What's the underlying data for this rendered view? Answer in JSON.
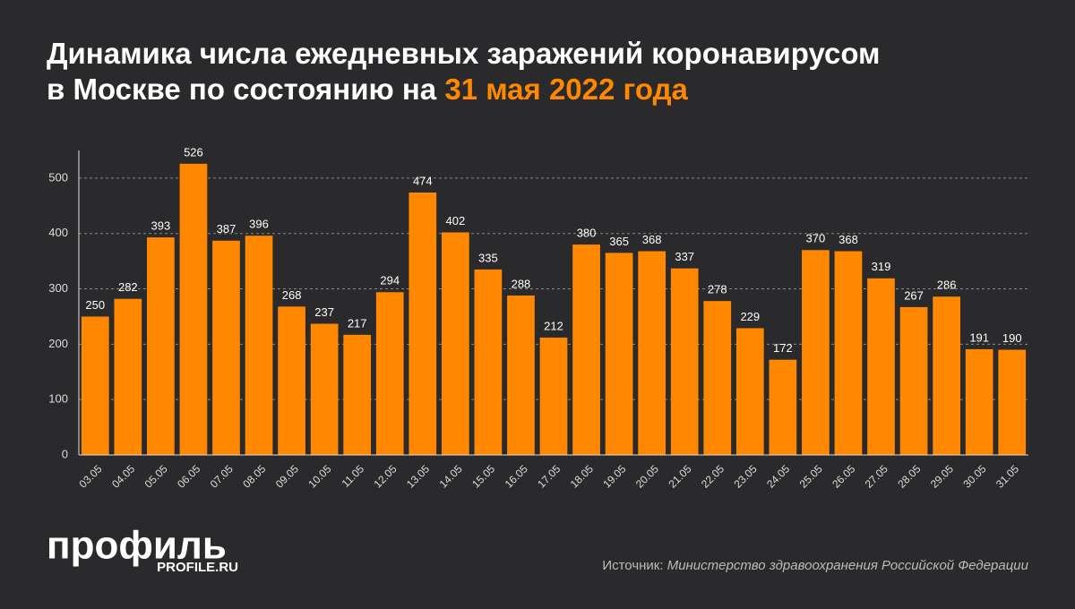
{
  "chart_data": {
    "type": "bar",
    "title": "Динамика числа ежедневных заражений коронавирусом в Москве по состоянию на ",
    "title_date": "31 мая 2022 года",
    "categories": [
      "03.05",
      "04.05",
      "05.05",
      "06.05",
      "07.05",
      "08.05",
      "09.05",
      "10.05",
      "11.05",
      "12.05",
      "13.05",
      "14.05",
      "15.05",
      "16.05",
      "17.05",
      "18.05",
      "19.05",
      "20.05",
      "21.05",
      "22.05",
      "23.05",
      "24.05",
      "25.05",
      "26.05",
      "27.05",
      "28.05",
      "29.05",
      "30.05",
      "31.05"
    ],
    "values": [
      250,
      282,
      393,
      526,
      387,
      396,
      268,
      237,
      217,
      294,
      474,
      402,
      335,
      288,
      212,
      380,
      365,
      368,
      337,
      278,
      229,
      172,
      370,
      368,
      319,
      267,
      286,
      191,
      190
    ],
    "color": "#ff8800",
    "ylim": [
      0,
      550
    ],
    "yticks": [
      0,
      100,
      200,
      300,
      400,
      500
    ],
    "grid": true,
    "logo": "профиль",
    "logo_sub": "PROFILE.RU",
    "source_label": "Источник:",
    "source": "Министерство здравоохранения Российской Федерации"
  }
}
